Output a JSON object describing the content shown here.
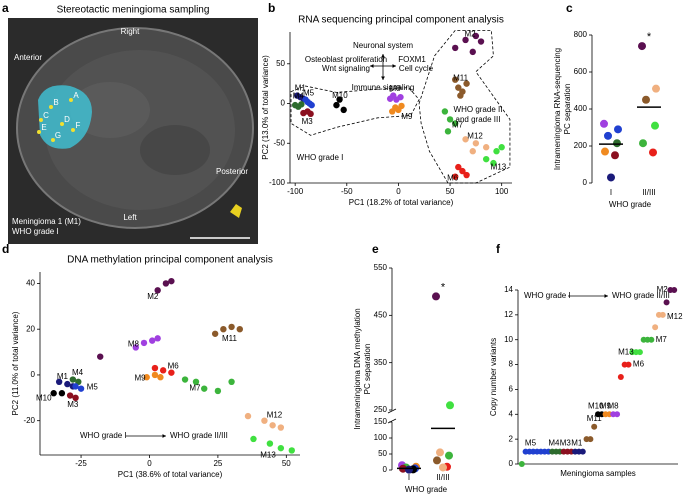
{
  "panel_labels": [
    "a",
    "b",
    "c",
    "d",
    "e",
    "f"
  ],
  "image_panel": {
    "title": "Stereotactic meningioma sampling",
    "orientation": [
      "Right",
      "Anterior",
      "Posterior",
      "Left"
    ],
    "caption": [
      "Meningioma 1 (M1)",
      "WHO grade I"
    ],
    "sample_sites": [
      "A",
      "B",
      "C",
      "D",
      "E",
      "F",
      "G"
    ]
  },
  "chart_data": [
    {
      "type": "scatter",
      "title": "RNA sequencing principal component analysis",
      "xlabel": "PC1 (18.2% of total variance)",
      "ylabel": "PC2 (13.0% of total variance)",
      "xlim": [
        -105,
        110
      ],
      "ylim": [
        -100,
        90
      ],
      "xticks": [
        -100,
        -50,
        0,
        50,
        100
      ],
      "yticks": [
        -100,
        -50,
        0,
        50
      ],
      "annotations": [
        "Neuronal system",
        "Osteoblast proliferation",
        "Wnt signaling",
        "FOXM1",
        "Cell cycle",
        "Immune signaling",
        "WHO grade I",
        "WHO grade II",
        "and grade III"
      ],
      "series": [
        {
          "name": "M1",
          "color": "#1a1a7a",
          "x": [
            -98,
            -95,
            -92
          ],
          "values": [
            10,
            8,
            6
          ]
        },
        {
          "name": "M5",
          "color": "#2040d0",
          "x": [
            -90,
            -88,
            -86,
            -84
          ],
          "values": [
            5,
            2,
            0,
            -2
          ]
        },
        {
          "name": "M4",
          "color": "#2d6b2d",
          "x": [
            -100,
            -97,
            -94
          ],
          "values": [
            -2,
            -4,
            -1
          ]
        },
        {
          "name": "M3",
          "color": "#8b1020",
          "x": [
            -92,
            -88,
            -85
          ],
          "values": [
            -12,
            -10,
            -13
          ]
        },
        {
          "name": "M10",
          "color": "#000000",
          "x": [
            -60,
            -57,
            -53
          ],
          "values": [
            -2,
            5,
            -8
          ]
        },
        {
          "name": "M8",
          "color": "#a040e0",
          "x": [
            -8,
            -5,
            -2,
            2
          ],
          "values": [
            6,
            10,
            5,
            8
          ]
        },
        {
          "name": "M9",
          "color": "#f08a20",
          "x": [
            -6,
            -3,
            0,
            3
          ],
          "values": [
            -10,
            -5,
            -8,
            -3
          ]
        },
        {
          "name": "M2",
          "color": "#5a1050",
          "x": [
            55,
            65,
            72,
            75,
            80
          ],
          "values": [
            70,
            80,
            65,
            85,
            78
          ]
        },
        {
          "name": "M11",
          "color": "#8b5a2b",
          "x": [
            55,
            58,
            60,
            62,
            66
          ],
          "values": [
            30,
            20,
            10,
            15,
            25
          ]
        },
        {
          "name": "M7",
          "color": "#3cb43c",
          "x": [
            45,
            48,
            50,
            55
          ],
          "values": [
            -10,
            -35,
            -20,
            -25
          ]
        },
        {
          "name": "M12",
          "color": "#f0b080",
          "x": [
            65,
            72,
            75,
            85
          ],
          "values": [
            -45,
            -60,
            -50,
            -55
          ]
        },
        {
          "name": "M6",
          "color": "#e8201a",
          "x": [
            55,
            58,
            62,
            66
          ],
          "values": [
            -92,
            -80,
            -85,
            -90
          ]
        },
        {
          "name": "M13",
          "color": "#40e040",
          "x": [
            85,
            92,
            95,
            100
          ],
          "values": [
            -70,
            -75,
            -60,
            -55
          ]
        }
      ]
    },
    {
      "type": "strip",
      "xlabel": "WHO grade",
      "ylabel": [
        "Intrameningioma RNA-sequencing",
        "PC separation"
      ],
      "ylim": [
        0,
        800
      ],
      "yticks": [
        0,
        200,
        400,
        600,
        800
      ],
      "categories": [
        "I",
        "II/III"
      ],
      "annotations": [
        "*"
      ],
      "groups": [
        {
          "values": [
            320,
            290,
            255,
            215,
            170,
            150,
            30
          ],
          "colors": [
            "#a040e0",
            "#2040d0",
            "#2040d0",
            "#2d6b2d",
            "#f08a20",
            "#8b1020",
            "#1a1a7a"
          ],
          "mean": 210
        },
        {
          "values": [
            740,
            510,
            450,
            310,
            215,
            165
          ],
          "colors": [
            "#5a1050",
            "#f0b080",
            "#8b5a2b",
            "#40e040",
            "#3cb43c",
            "#e8201a"
          ],
          "mean": 410
        }
      ]
    },
    {
      "type": "scatter",
      "title": "DNA methylation principal component analysis",
      "xlabel": "PC1 (38.6% of total variance)",
      "ylabel": "PC2 (11.0% of total variance)",
      "xlim": [
        -40,
        55
      ],
      "ylim": [
        -35,
        45
      ],
      "xticks": [
        -25,
        0,
        25,
        50
      ],
      "yticks": [
        -20,
        0,
        20,
        40
      ],
      "annotations": [
        "WHO grade I",
        "WHO grade II/III"
      ],
      "series": [
        {
          "name": "M1",
          "color": "#1a1a7a",
          "x": [
            -33,
            -30,
            -28
          ],
          "values": [
            -3,
            -4,
            -5
          ]
        },
        {
          "name": "M10",
          "color": "#000000",
          "x": [
            -35,
            -32
          ],
          "values": [
            -8,
            -8
          ]
        },
        {
          "name": "M4",
          "color": "#2d6b2d",
          "x": [
            -28,
            -26
          ],
          "values": [
            -2,
            -3
          ]
        },
        {
          "name": "M5",
          "color": "#2040d0",
          "x": [
            -27,
            -25
          ],
          "values": [
            -5,
            -6
          ]
        },
        {
          "name": "M3",
          "color": "#8b1020",
          "x": [
            -29,
            -27
          ],
          "values": [
            -9,
            -10
          ]
        },
        {
          "name": "M2",
          "color": "#5a1050",
          "x": [
            -18,
            3,
            6,
            8
          ],
          "values": [
            8,
            37,
            40,
            41
          ]
        },
        {
          "name": "M8",
          "color": "#a040e0",
          "x": [
            -5,
            -2,
            1,
            3
          ],
          "values": [
            12,
            14,
            15,
            16
          ]
        },
        {
          "name": "M6",
          "color": "#e8201a",
          "x": [
            2,
            5,
            8
          ],
          "values": [
            3,
            2,
            1
          ]
        },
        {
          "name": "M9",
          "color": "#f08a20",
          "x": [
            -1,
            2,
            4
          ],
          "values": [
            -1,
            0,
            -1
          ]
        },
        {
          "name": "M11",
          "color": "#8b5a2b",
          "x": [
            24,
            27,
            30,
            33
          ],
          "values": [
            18,
            20,
            21,
            20
          ]
        },
        {
          "name": "M7",
          "color": "#3cb43c",
          "x": [
            13,
            17,
            20,
            25,
            30
          ],
          "values": [
            -2,
            -3,
            -6,
            -7,
            -3
          ]
        },
        {
          "name": "M12",
          "color": "#f0b080",
          "x": [
            36,
            42,
            45,
            48
          ],
          "values": [
            -18,
            -20,
            -22,
            -23
          ]
        },
        {
          "name": "M13",
          "color": "#40e040",
          "x": [
            38,
            44,
            48,
            52
          ],
          "values": [
            -28,
            -30,
            -32,
            -33
          ]
        }
      ]
    },
    {
      "type": "strip",
      "xlabel": "WHO grade",
      "ylabel": [
        "Intrameningioma DNA methylation",
        "PC separation"
      ],
      "segments": [
        {
          "ylim": [
            0,
            150
          ],
          "yticks": [
            0,
            50,
            100,
            150
          ]
        },
        {
          "ylim": [
            250,
            550
          ],
          "yticks": [
            250,
            350,
            450,
            550
          ]
        }
      ],
      "categories": [
        "I",
        "II/III"
      ],
      "annotations": [
        "*"
      ],
      "groups": [
        {
          "values": [
            15,
            10,
            8,
            5,
            4,
            2,
            1
          ],
          "colors": [
            "#a040e0",
            "#f08a20",
            "#3cb43c",
            "#2040d0",
            "#8b1020",
            "#000000",
            "#1a1a7a"
          ],
          "mean": 5
        },
        {
          "values": [
            490,
            260,
            55,
            45,
            30,
            10,
            8
          ],
          "colors": [
            "#5a1050",
            "#40e040",
            "#f0b080",
            "#3cb43c",
            "#8b5a2b",
            "#e8201a",
            "#f0b080"
          ],
          "mean": 130
        }
      ]
    },
    {
      "type": "scatter",
      "xlabel": "Meningioma samples",
      "ylabel": "Copy number variants",
      "xlim": [
        0,
        42
      ],
      "ylim": [
        0,
        14
      ],
      "yticks": [
        0,
        2,
        4,
        6,
        8,
        10,
        12,
        14
      ],
      "annotations": [
        "WHO grade I",
        "WHO grade II/III"
      ],
      "series": [
        {
          "name": "M5",
          "color": "#2040d0",
          "x": [
            2,
            3,
            4,
            5,
            6,
            7,
            8
          ],
          "values": [
            1,
            1,
            1,
            1,
            1,
            1,
            1
          ]
        },
        {
          "name": "M4",
          "color": "#2d6b2d",
          "x": [
            9,
            10,
            11
          ],
          "values": [
            1,
            1,
            1
          ]
        },
        {
          "name": "M3",
          "color": "#8b1020",
          "x": [
            12,
            13,
            14
          ],
          "values": [
            1,
            1,
            1
          ]
        },
        {
          "name": "M1",
          "color": "#1a1a7a",
          "x": [
            15,
            16,
            17
          ],
          "values": [
            1,
            1,
            1
          ]
        },
        {
          "name": "M11",
          "color": "#8b5a2b",
          "x": [
            18,
            19,
            20
          ],
          "values": [
            2,
            2,
            3
          ]
        },
        {
          "name": "M10",
          "color": "#000000",
          "x": [
            21,
            22
          ],
          "values": [
            4,
            4
          ]
        },
        {
          "name": "M9",
          "color": "#f08a20",
          "x": [
            23,
            24
          ],
          "values": [
            4,
            4
          ]
        },
        {
          "name": "M8",
          "color": "#a040e0",
          "x": [
            25,
            26
          ],
          "values": [
            4,
            4
          ]
        },
        {
          "name": "M6",
          "color": "#e8201a",
          "x": [
            27,
            28,
            29
          ],
          "values": [
            7,
            8,
            8
          ]
        },
        {
          "name": "M13",
          "color": "#40e040",
          "x": [
            30,
            31,
            32
          ],
          "values": [
            9,
            9,
            9
          ]
        },
        {
          "name": "M7",
          "color": "#3cb43c",
          "x": [
            1,
            33,
            34,
            35
          ],
          "values": [
            0,
            10,
            10,
            10
          ]
        },
        {
          "name": "M12",
          "color": "#f0b080",
          "x": [
            36,
            37,
            38
          ],
          "values": [
            11,
            12,
            12
          ]
        },
        {
          "name": "M2",
          "color": "#5a1050",
          "x": [
            39,
            40,
            41
          ],
          "values": [
            13,
            14,
            14
          ]
        }
      ]
    }
  ]
}
